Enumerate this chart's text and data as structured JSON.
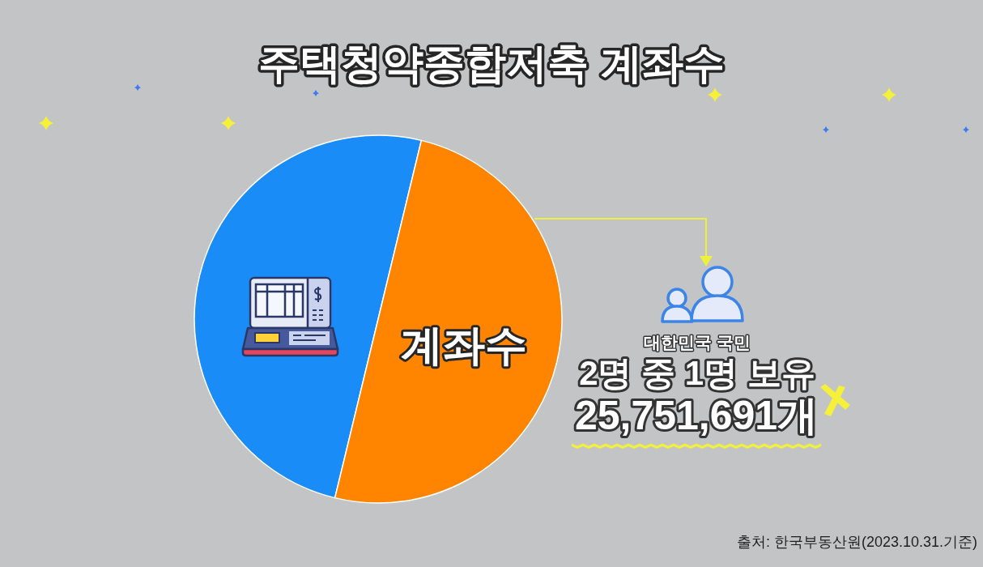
{
  "chart_data": {
    "type": "pie",
    "title": "주택청약종합저축 계좌수",
    "categories": [
      null,
      "계좌수"
    ],
    "values": [
      50,
      50
    ],
    "colors": [
      "#1a8cf8",
      "#ff8400"
    ],
    "annotations": [
      "대한민국 국민",
      "2명 중 1명 보유",
      "25,751,691개",
      "출처: 한국부동산원(2023.10.31.기준)"
    ]
  }
}
